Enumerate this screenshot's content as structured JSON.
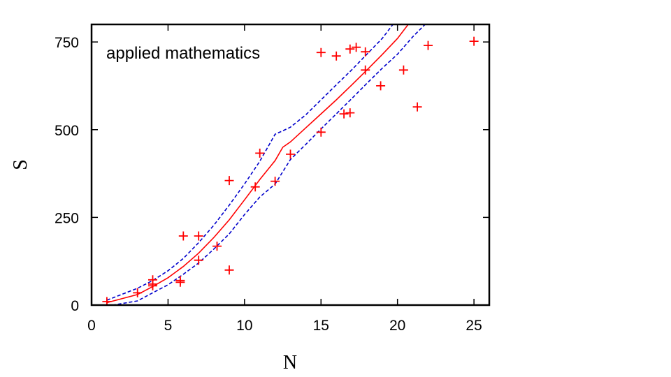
{
  "chart_data": {
    "type": "scatter",
    "title": "",
    "annotation": "applied mathematics",
    "xlabel": "N",
    "ylabel": "S",
    "xlim": [
      0,
      26
    ],
    "ylim": [
      0,
      800
    ],
    "xticks": [
      0,
      5,
      10,
      15,
      20,
      25
    ],
    "yticks": [
      0,
      250,
      500,
      750
    ],
    "grid": false,
    "legend": "none",
    "colors": {
      "points": "#ff0000",
      "fit": "#ff0000",
      "bounds": "#0000cc",
      "frame": "#000000"
    },
    "series": [
      {
        "kind": "points",
        "marker": "plus",
        "points": [
          [
            1,
            0
          ],
          [
            1,
            10
          ],
          [
            3,
            35
          ],
          [
            4,
            55
          ],
          [
            4,
            60
          ],
          [
            4,
            72
          ],
          [
            5.8,
            70
          ],
          [
            5.8,
            65
          ],
          [
            6,
            197
          ],
          [
            7,
            197
          ],
          [
            7,
            128
          ],
          [
            8.2,
            168
          ],
          [
            9,
            100
          ],
          [
            9,
            355
          ],
          [
            10.7,
            337
          ],
          [
            11,
            433
          ],
          [
            12,
            353
          ],
          [
            13,
            430
          ],
          [
            15,
            493
          ],
          [
            15,
            720
          ],
          [
            16,
            710
          ],
          [
            16.5,
            545
          ],
          [
            16.9,
            548
          ],
          [
            16.9,
            730
          ],
          [
            17.3,
            735
          ],
          [
            17.9,
            670
          ],
          [
            17.9,
            722
          ],
          [
            18.9,
            625
          ],
          [
            20.4,
            670
          ],
          [
            21.3,
            565
          ],
          [
            22,
            740
          ],
          [
            25,
            752
          ]
        ]
      },
      {
        "kind": "line",
        "style": "solid",
        "points": [
          [
            1,
            7
          ],
          [
            3,
            30
          ],
          [
            4,
            53
          ],
          [
            5,
            78
          ],
          [
            6,
            110
          ],
          [
            7,
            148
          ],
          [
            8,
            193
          ],
          [
            9,
            243
          ],
          [
            10,
            300
          ],
          [
            11,
            358
          ],
          [
            12,
            412
          ],
          [
            12.5,
            450
          ],
          [
            13,
            465
          ],
          [
            14,
            505
          ],
          [
            15,
            545
          ],
          [
            16,
            585
          ],
          [
            17,
            627
          ],
          [
            18,
            670
          ],
          [
            19,
            714
          ],
          [
            20,
            760
          ],
          [
            20.7,
            800
          ]
        ]
      },
      {
        "kind": "line",
        "style": "dashed",
        "points": [
          [
            1,
            14
          ],
          [
            3,
            48
          ],
          [
            4,
            70
          ],
          [
            5,
            98
          ],
          [
            6,
            133
          ],
          [
            7,
            178
          ],
          [
            8,
            228
          ],
          [
            9,
            285
          ],
          [
            10,
            345
          ],
          [
            11,
            410
          ],
          [
            12,
            487
          ],
          [
            12.5,
            497
          ],
          [
            13,
            507
          ],
          [
            14,
            542
          ],
          [
            15,
            585
          ],
          [
            16,
            628
          ],
          [
            17,
            670
          ],
          [
            18,
            715
          ],
          [
            19,
            760
          ],
          [
            19.7,
            800
          ]
        ]
      },
      {
        "kind": "line",
        "style": "dashed",
        "points": [
          [
            1,
            -3
          ],
          [
            3,
            12
          ],
          [
            4,
            35
          ],
          [
            5,
            58
          ],
          [
            6,
            88
          ],
          [
            7,
            120
          ],
          [
            8,
            160
          ],
          [
            9,
            203
          ],
          [
            10,
            258
          ],
          [
            11,
            308
          ],
          [
            12,
            345
          ],
          [
            13,
            415
          ],
          [
            14,
            458
          ],
          [
            15,
            502
          ],
          [
            16,
            545
          ],
          [
            17,
            588
          ],
          [
            18,
            632
          ],
          [
            19,
            675
          ],
          [
            20,
            715
          ],
          [
            21,
            765
          ],
          [
            21.8,
            800
          ]
        ]
      }
    ]
  }
}
